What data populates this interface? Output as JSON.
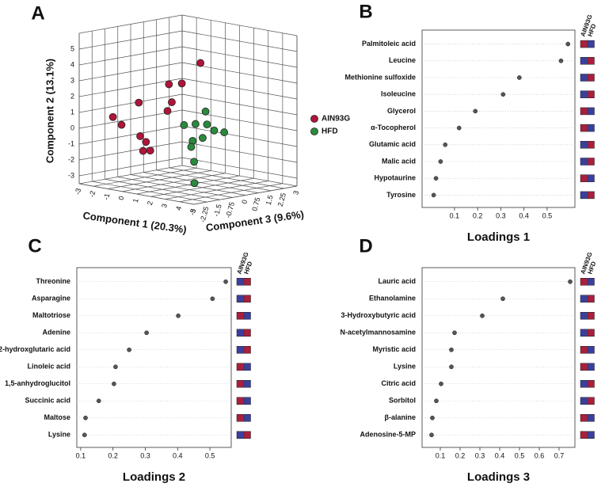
{
  "chart_data": [
    {
      "type": "scatter3d",
      "panel_label": "A",
      "xlabel": "Component 1 (20.3%)",
      "ylabel": "Component 2 (13.1%)",
      "zlabel": "Component 3 (9.6%)",
      "xlim": [
        -3,
        5
      ],
      "ylim": [
        -3.5,
        6
      ],
      "zlim": [
        -3,
        3
      ],
      "xticks": [
        -3,
        -2,
        -1,
        0,
        1,
        2,
        3,
        4,
        5
      ],
      "yticks": [
        -3,
        -2,
        -1,
        0,
        1,
        2,
        3,
        4,
        5
      ],
      "zticks": [
        -3,
        -2.25,
        -1.5,
        -0.75,
        0,
        0.75,
        1.5,
        2.25,
        3
      ],
      "series": [
        {
          "name": "AIN93G",
          "color": "#b01539",
          "x": [
            3.3,
            1.1,
            2.0,
            -1.0,
            1.3,
            -2.8,
            -2.2,
            1.0,
            -0.9,
            -0.5,
            -0.7,
            -0.2
          ],
          "y": [
            4.8,
            3.1,
            3.3,
            1.6,
            2.0,
            0.4,
            0.0,
            1.4,
            -0.5,
            -0.8,
            -1.4,
            -1.3
          ],
          "z": [
            -1.2,
            -1.2,
            -1.2,
            -1.2,
            -1.2,
            -1.2,
            -1.2,
            -1.2,
            -1.2,
            -1.2,
            -1.2,
            -1.2
          ]
        },
        {
          "name": "HFD",
          "color": "#2a8a3c",
          "x": [
            1.5,
            0.8,
            0.0,
            1.6,
            0.6,
            1.3,
            0.5,
            2.1,
            2.8,
            0.7,
            1.8
          ],
          "y": [
            1.1,
            0.2,
            0.0,
            0.3,
            -0.9,
            -0.6,
            -1.3,
            0.0,
            0.0,
            -2.2,
            -3.2
          ],
          "z": [
            0.6,
            0.6,
            0.6,
            0.6,
            0.6,
            0.6,
            0.6,
            0.6,
            0.6,
            0.6,
            -0.3
          ]
        }
      ]
    },
    {
      "type": "dot",
      "panel_label": "B",
      "xlabel": "Loadings 1",
      "categories": [
        "Palmitoleic acid",
        "Leucine",
        "Methionine sulfoxide",
        "Isoleucine",
        "Glycerol",
        "α-Tocopherol",
        "Glutamic acid",
        "Malic acid",
        "Hypotaurine",
        "Tyrosine"
      ],
      "values": [
        0.59,
        0.56,
        0.38,
        0.31,
        0.19,
        0.12,
        0.06,
        0.04,
        0.02,
        0.01
      ],
      "xlim": [
        -0.04,
        0.62
      ],
      "xticks": [
        0.1,
        0.2,
        0.3,
        0.4,
        0.5
      ],
      "point_color": "#555555",
      "heatmap": {
        "columns": [
          "AIN93G",
          "HFD"
        ],
        "colors": [
          [
            "#a8203c",
            "#3b3f9c"
          ],
          [
            "#3b3f9c",
            "#a8203c"
          ],
          [
            "#3b3f9c",
            "#a8203c"
          ],
          [
            "#3b3f9c",
            "#a8203c"
          ],
          [
            "#a8203c",
            "#3b3f9c"
          ],
          [
            "#a8203c",
            "#3b3f9c"
          ],
          [
            "#3b3f9c",
            "#a8203c"
          ],
          [
            "#3b3f9c",
            "#a8203c"
          ],
          [
            "#a8203c",
            "#3b3f9c"
          ],
          [
            "#3b3f9c",
            "#a8203c"
          ]
        ]
      }
    },
    {
      "type": "dot",
      "panel_label": "C",
      "xlabel": "Loadings 2",
      "categories": [
        "Threonine",
        "Asparagine",
        "Maltotriose",
        "Adenine",
        "2-hydroxglutaric acid",
        "Linoleic acid",
        "1,5-anhydroglucitol",
        "Succinic acid",
        "Maltose",
        "Lysine"
      ],
      "values": [
        0.549,
        0.508,
        0.402,
        0.304,
        0.25,
        0.208,
        0.203,
        0.156,
        0.115,
        0.112
      ],
      "xlim": [
        0.088,
        0.566
      ],
      "xticks": [
        0.1,
        0.2,
        0.3,
        0.4,
        0.5
      ],
      "point_color": "#555555",
      "heatmap": {
        "columns": [
          "AIN93G",
          "HFD"
        ],
        "colors": [
          [
            "#3b3f9c",
            "#a8203c"
          ],
          [
            "#3b3f9c",
            "#a8203c"
          ],
          [
            "#a8203c",
            "#3b3f9c"
          ],
          [
            "#3b3f9c",
            "#a8203c"
          ],
          [
            "#3b3f9c",
            "#a8203c"
          ],
          [
            "#a8203c",
            "#3b3f9c"
          ],
          [
            "#a8203c",
            "#3b3f9c"
          ],
          [
            "#a8203c",
            "#3b3f9c"
          ],
          [
            "#a8203c",
            "#3b3f9c"
          ],
          [
            "#3b3f9c",
            "#a8203c"
          ]
        ]
      }
    },
    {
      "type": "dot",
      "panel_label": "D",
      "xlabel": "Loadings 3",
      "categories": [
        "Lauric acid",
        "Ethanolamine",
        "3-Hydroxybutyric acid",
        "N-acetylmannosamine",
        "Myristic acid",
        "Lysine",
        "Citric acid",
        "Sorbitol",
        "β-alanine",
        "Adenosine-5-MP"
      ],
      "values": [
        0.756,
        0.416,
        0.312,
        0.172,
        0.156,
        0.156,
        0.104,
        0.08,
        0.06,
        0.056
      ],
      "xlim": [
        0.008,
        0.78
      ],
      "xticks": [
        0.1,
        0.2,
        0.3,
        0.4,
        0.5,
        0.6,
        0.7
      ],
      "point_color": "#555555",
      "heatmap": {
        "columns": [
          "AIN93G",
          "HFD"
        ],
        "colors": [
          [
            "#a8203c",
            "#3b3f9c"
          ],
          [
            "#3b3f9c",
            "#a8203c"
          ],
          [
            "#3b3f9c",
            "#a8203c"
          ],
          [
            "#3b3f9c",
            "#a8203c"
          ],
          [
            "#a8203c",
            "#3b3f9c"
          ],
          [
            "#a8203c",
            "#3b3f9c"
          ],
          [
            "#3b3f9c",
            "#a8203c"
          ],
          [
            "#3b3f9c",
            "#a8203c"
          ],
          [
            "#a8203c",
            "#3b3f9c"
          ],
          [
            "#a8203c",
            "#3b3f9c"
          ]
        ]
      }
    }
  ]
}
